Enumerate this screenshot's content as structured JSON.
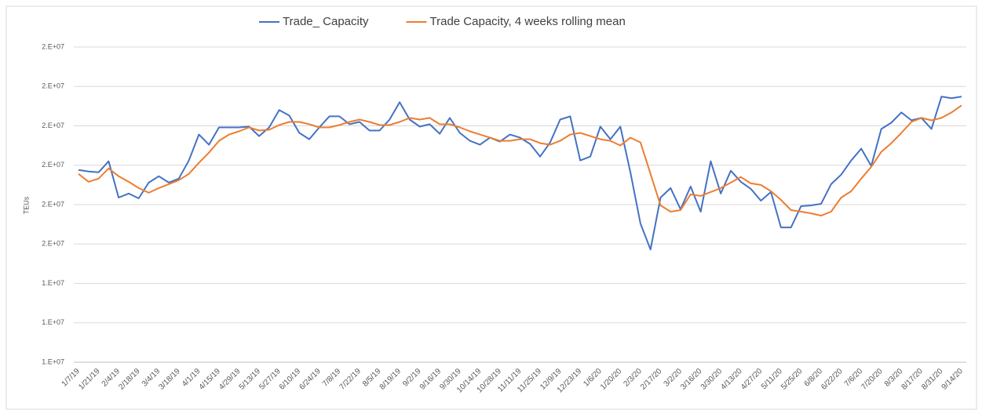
{
  "chart_data": {
    "type": "line",
    "ylabel": "TEUs",
    "categories": [
      "1/7/19",
      null,
      "1/21/19",
      null,
      "2/4/19",
      null,
      "2/18/19",
      null,
      "3/4/19",
      null,
      "3/18/19",
      null,
      "4/1/19",
      null,
      "4/15/19",
      null,
      "4/29/19",
      null,
      "5/13/19",
      null,
      "5/27/19",
      null,
      "6/10/19",
      null,
      "6/24/19",
      null,
      "7/8/19",
      null,
      "7/22/19",
      null,
      "8/5/19",
      null,
      "8/19/19",
      null,
      "9/2/19",
      null,
      "9/16/19",
      null,
      "9/30/19",
      null,
      "10/14/19",
      null,
      "10/28/19",
      null,
      "11/11/19",
      null,
      "11/25/19",
      null,
      "12/9/19",
      null,
      "12/23/19",
      null,
      "1/6/20",
      null,
      "1/20/20",
      null,
      "2/3/20",
      null,
      "2/17/20",
      null,
      "3/2/20",
      null,
      "3/16/20",
      null,
      "3/30/20",
      null,
      "4/13/20",
      null,
      "4/27/20",
      null,
      "5/11/20",
      null,
      "5/25/20",
      null,
      "6/8/20",
      null,
      "6/22/20",
      null,
      "7/6/20",
      null,
      "7/20/20",
      null,
      "8/3/20",
      null,
      "8/17/20",
      null,
      "8/31/20",
      null,
      "9/14/20"
    ],
    "series": [
      {
        "name": "Trade_ Capacity",
        "color": "#4472c4",
        "values": [
          15940000,
          15920000,
          15910000,
          16050000,
          15590000,
          15640000,
          15580000,
          15780000,
          15860000,
          15780000,
          15830000,
          16060000,
          16390000,
          16260000,
          16480000,
          16480000,
          16480000,
          16490000,
          16370000,
          16480000,
          16700000,
          16630000,
          16410000,
          16330000,
          16480000,
          16620000,
          16620000,
          16520000,
          16550000,
          16440000,
          16440000,
          16580000,
          16800000,
          16580000,
          16490000,
          16520000,
          16400000,
          16600000,
          16410000,
          16310000,
          16260000,
          16350000,
          16300000,
          16390000,
          16350000,
          16270000,
          16110000,
          16290000,
          16580000,
          16620000,
          16060000,
          16110000,
          16490000,
          16330000,
          16490000,
          15910000,
          15260000,
          14930000,
          15590000,
          15710000,
          15440000,
          15730000,
          15410000,
          16050000,
          15640000,
          15930000,
          15790000,
          15700000,
          15550000,
          15660000,
          15210000,
          15210000,
          15480000,
          15490000,
          15510000,
          15760000,
          15880000,
          16060000,
          16210000,
          15990000,
          16460000,
          16540000,
          16670000,
          16570000,
          16600000,
          16460000,
          16870000,
          16850000,
          16870000
        ]
      },
      {
        "name": "Trade Capacity, 4 weeks rolling mean",
        "color": "#ed7d31",
        "values": [
          15890000,
          15790000,
          15830000,
          15960000,
          15860000,
          15790000,
          15710000,
          15650000,
          15710000,
          15760000,
          15810000,
          15890000,
          16030000,
          16160000,
          16310000,
          16390000,
          16430000,
          16480000,
          16440000,
          16450000,
          16510000,
          16550000,
          16550000,
          16520000,
          16480000,
          16480000,
          16510000,
          16550000,
          16580000,
          16550000,
          16510000,
          16510000,
          16550000,
          16600000,
          16580000,
          16600000,
          16520000,
          16520000,
          16480000,
          16430000,
          16390000,
          16350000,
          16310000,
          16310000,
          16330000,
          16330000,
          16280000,
          16260000,
          16310000,
          16390000,
          16410000,
          16370000,
          16330000,
          16310000,
          16250000,
          16350000,
          16290000,
          15890000,
          15490000,
          15410000,
          15430000,
          15630000,
          15610000,
          15660000,
          15710000,
          15780000,
          15850000,
          15770000,
          15750000,
          15670000,
          15560000,
          15430000,
          15410000,
          15390000,
          15360000,
          15410000,
          15590000,
          15670000,
          15830000,
          15980000,
          16170000,
          16280000,
          16410000,
          16550000,
          16600000,
          16570000,
          16600000,
          16670000,
          16760000
        ]
      }
    ],
    "ylim": [
      13500000,
      17500000
    ],
    "yticks": [
      {
        "value": 13500000,
        "label": "1.E+07"
      },
      {
        "value": 14000000,
        "label": "1.E+07"
      },
      {
        "value": 14500000,
        "label": "1.E+07"
      },
      {
        "value": 15000000,
        "label": "2.E+07"
      },
      {
        "value": 15500000,
        "label": "2.E+07"
      },
      {
        "value": 16000000,
        "label": "2.E+07"
      },
      {
        "value": 16500000,
        "label": "2.E+07"
      },
      {
        "value": 17000000,
        "label": "2.E+07"
      },
      {
        "value": 17500000,
        "label": "2.E+07"
      }
    ],
    "grid": true,
    "legend": "top"
  }
}
